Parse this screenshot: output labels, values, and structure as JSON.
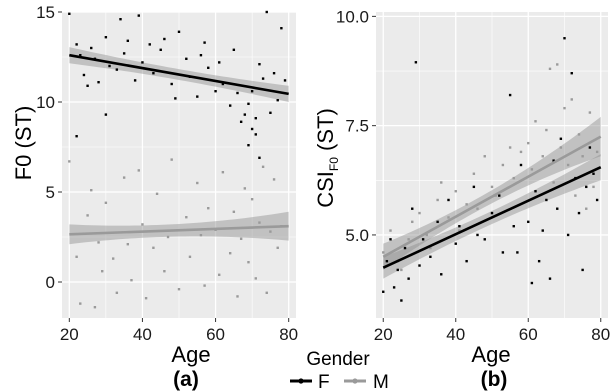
{
  "legend": {
    "title": "Gender",
    "entries": [
      {
        "label": "F",
        "color": "#000000"
      },
      {
        "label": "M",
        "color": "#9a9a9a"
      }
    ],
    "position": "bottom-center"
  },
  "chart_data": [
    {
      "type": "scatter",
      "panel_label": "(a)",
      "xlabel": "Age",
      "ylabel": "F0 (ST)",
      "xlim": [
        18,
        82
      ],
      "ylim": [
        -2,
        15
      ],
      "xticks": [
        20,
        40,
        60,
        80
      ],
      "yticks": [
        0,
        5,
        10,
        15
      ],
      "grid": true,
      "background": "#ebebeb",
      "series": [
        {
          "name": "F",
          "color": "#000000",
          "regression": {
            "x": [
              20,
              80
            ],
            "y": [
              12.6,
              10.45
            ],
            "ci_half_width": [
              0.45,
              0.3,
              0.45
            ]
          },
          "points": [
            [
              20,
              14.9
            ],
            [
              22,
              13.2
            ],
            [
              23,
              12.6
            ],
            [
              24,
              11.5
            ],
            [
              25,
              10.9
            ],
            [
              26,
              13.0
            ],
            [
              27,
              12.4
            ],
            [
              28,
              11.1
            ],
            [
              30,
              13.6
            ],
            [
              31,
              12.0
            ],
            [
              33,
              11.8
            ],
            [
              34,
              14.6
            ],
            [
              35,
              12.7
            ],
            [
              36,
              13.4
            ],
            [
              38,
              11.2
            ],
            [
              39,
              14.8
            ],
            [
              40,
              12.2
            ],
            [
              42,
              13.2
            ],
            [
              43,
              11.6
            ],
            [
              45,
              12.9
            ],
            [
              46,
              13.5
            ],
            [
              48,
              11.0
            ],
            [
              49,
              10.2
            ],
            [
              50,
              13.9
            ],
            [
              52,
              12.4
            ],
            [
              53,
              11.4
            ],
            [
              55,
              10.3
            ],
            [
              56,
              12.6
            ],
            [
              57,
              13.3
            ],
            [
              58,
              11.9
            ],
            [
              60,
              10.6
            ],
            [
              61,
              12.2
            ],
            [
              62,
              11.0
            ],
            [
              64,
              9.8
            ],
            [
              65,
              12.9
            ],
            [
              66,
              10.5
            ],
            [
              67,
              8.9
            ],
            [
              68,
              9.3
            ],
            [
              69,
              9.9
            ],
            [
              70,
              10.6
            ],
            [
              71,
              8.2
            ],
            [
              72,
              12.1
            ],
            [
              73,
              11.3
            ],
            [
              74,
              15.0
            ],
            [
              75,
              9.4
            ],
            [
              76,
              11.6
            ],
            [
              77,
              10.1
            ],
            [
              78,
              14.1
            ],
            [
              79,
              11.2
            ],
            [
              22,
              8.1
            ],
            [
              30,
              9.3
            ],
            [
              70,
              8.5
            ],
            [
              69,
              7.6
            ],
            [
              72,
              6.9
            ],
            [
              71,
              9.1
            ]
          ]
        },
        {
          "name": "M",
          "color": "#9a9a9a",
          "regression": {
            "x": [
              20,
              80
            ],
            "y": [
              2.65,
              3.1
            ],
            "ci_half_width": [
              0.55,
              0.35,
              0.8
            ]
          },
          "points": [
            [
              20,
              6.7
            ],
            [
              22,
              1.4
            ],
            [
              23,
              -1.2
            ],
            [
              25,
              3.7
            ],
            [
              26,
              5.1
            ],
            [
              27,
              -1.4
            ],
            [
              28,
              2.2
            ],
            [
              29,
              0.6
            ],
            [
              30,
              4.4
            ],
            [
              32,
              1.3
            ],
            [
              33,
              -0.6
            ],
            [
              35,
              5.8
            ],
            [
              36,
              2.1
            ],
            [
              37,
              0.1
            ],
            [
              39,
              6.2
            ],
            [
              40,
              3.2
            ],
            [
              41,
              -0.9
            ],
            [
              43,
              1.9
            ],
            [
              44,
              4.9
            ],
            [
              46,
              0.6
            ],
            [
              47,
              2.5
            ],
            [
              48,
              6.8
            ],
            [
              50,
              -0.4
            ],
            [
              52,
              3.6
            ],
            [
              53,
              1.4
            ],
            [
              55,
              5.5
            ],
            [
              56,
              2.6
            ],
            [
              57,
              -0.2
            ],
            [
              58,
              4.1
            ],
            [
              60,
              2.9
            ],
            [
              61,
              0.4
            ],
            [
              62,
              6.1
            ],
            [
              64,
              1.6
            ],
            [
              65,
              3.9
            ],
            [
              66,
              -0.8
            ],
            [
              67,
              2.4
            ],
            [
              68,
              5.2
            ],
            [
              69,
              1.1
            ],
            [
              70,
              4.6
            ],
            [
              71,
              0.2
            ],
            [
              72,
              3.3
            ],
            [
              73,
              6.4
            ],
            [
              74,
              -0.6
            ],
            [
              75,
              2.8
            ],
            [
              76,
              5.7
            ],
            [
              77,
              1.9
            ],
            [
              78,
              3.1
            ]
          ]
        }
      ]
    },
    {
      "type": "scatter",
      "panel_label": "(b)",
      "xlabel": "Age",
      "ylabel": "CSI",
      "ylabel_subscript": "F0",
      "ylabel_suffix": " (ST)",
      "xlim": [
        18,
        82
      ],
      "ylim": [
        3.1,
        10.1
      ],
      "xticks": [
        20,
        40,
        60,
        80
      ],
      "yticks": [
        5.0,
        7.5,
        10.0
      ],
      "ytick_labels": [
        "5.0",
        "7.5",
        "10.0"
      ],
      "grid": true,
      "background": "#ebebeb",
      "series": [
        {
          "name": "F",
          "color": "#000000",
          "regression": {
            "x": [
              20,
              80
            ],
            "y": [
              4.25,
              6.55
            ],
            "ci_half_width": [
              0.25,
              0.15,
              0.3
            ]
          },
          "points": [
            [
              20,
              3.7
            ],
            [
              21,
              4.4
            ],
            [
              22,
              4.9
            ],
            [
              23,
              3.8
            ],
            [
              24,
              4.2
            ],
            [
              25,
              3.5
            ],
            [
              26,
              4.7
            ],
            [
              27,
              4.0
            ],
            [
              28,
              5.6
            ],
            [
              29,
              8.95
            ],
            [
              30,
              4.3
            ],
            [
              31,
              4.9
            ],
            [
              33,
              4.5
            ],
            [
              35,
              5.3
            ],
            [
              36,
              4.1
            ],
            [
              38,
              5.8
            ],
            [
              40,
              4.8
            ],
            [
              41,
              5.2
            ],
            [
              43,
              4.4
            ],
            [
              45,
              6.1
            ],
            [
              46,
              5.0
            ],
            [
              48,
              4.9
            ],
            [
              50,
              5.5
            ],
            [
              52,
              5.9
            ],
            [
              53,
              4.6
            ],
            [
              55,
              8.2
            ],
            [
              56,
              5.2
            ],
            [
              57,
              4.6
            ],
            [
              58,
              6.6
            ],
            [
              60,
              5.3
            ],
            [
              61,
              3.9
            ],
            [
              62,
              6.0
            ],
            [
              63,
              4.4
            ],
            [
              64,
              5.1
            ],
            [
              65,
              5.8
            ],
            [
              66,
              4.0
            ],
            [
              67,
              6.7
            ],
            [
              68,
              5.6
            ],
            [
              69,
              7.2
            ],
            [
              70,
              9.5
            ],
            [
              71,
              5.0
            ],
            [
              72,
              8.7
            ],
            [
              73,
              6.3
            ],
            [
              74,
              5.5
            ],
            [
              75,
              4.2
            ],
            [
              76,
              6.1
            ],
            [
              77,
              7.0
            ],
            [
              78,
              6.4
            ],
            [
              79,
              5.8
            ]
          ]
        },
        {
          "name": "M",
          "color": "#9a9a9a",
          "regression": {
            "x": [
              20,
              80
            ],
            "y": [
              4.5,
              7.25
            ],
            "ci_half_width": [
              0.3,
              0.15,
              0.45
            ]
          },
          "points": [
            [
              20,
              4.6
            ],
            [
              22,
              5.1
            ],
            [
              24,
              4.4
            ],
            [
              25,
              4.2
            ],
            [
              27,
              4.9
            ],
            [
              28,
              5.3
            ],
            [
              30,
              5.5
            ],
            [
              32,
              5.0
            ],
            [
              33,
              4.7
            ],
            [
              35,
              5.8
            ],
            [
              36,
              6.2
            ],
            [
              38,
              5.4
            ],
            [
              40,
              6.0
            ],
            [
              41,
              5.1
            ],
            [
              43,
              5.7
            ],
            [
              45,
              6.4
            ],
            [
              46,
              5.6
            ],
            [
              48,
              6.8
            ],
            [
              50,
              6.1
            ],
            [
              51,
              5.9
            ],
            [
              53,
              6.6
            ],
            [
              55,
              7.0
            ],
            [
              56,
              6.3
            ],
            [
              58,
              6.9
            ],
            [
              60,
              7.1
            ],
            [
              61,
              6.5
            ],
            [
              62,
              7.6
            ],
            [
              64,
              6.8
            ],
            [
              65,
              7.4
            ],
            [
              66,
              8.8
            ],
            [
              67,
              6.2
            ],
            [
              68,
              8.9
            ],
            [
              69,
              7.0
            ],
            [
              70,
              7.9
            ],
            [
              71,
              6.6
            ],
            [
              72,
              8.1
            ],
            [
              73,
              5.9
            ],
            [
              74,
              7.3
            ],
            [
              75,
              6.8
            ],
            [
              76,
              5.6
            ],
            [
              77,
              7.8
            ],
            [
              78,
              6.1
            ],
            [
              79,
              6.9
            ]
          ]
        }
      ]
    }
  ]
}
